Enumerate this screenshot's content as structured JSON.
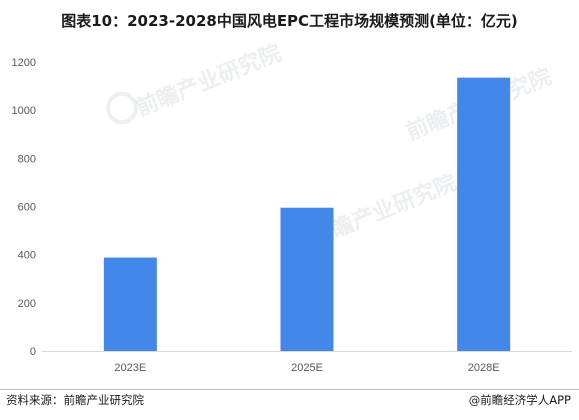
{
  "chart_data": {
    "type": "bar",
    "title": "图表10：2023-2028中国风电EPC工程市场规模预测(单位：亿元)",
    "categories": [
      "2023E",
      "2025E",
      "2028E"
    ],
    "values": [
      388,
      595,
      1135
    ],
    "xlabel": "",
    "ylabel": "",
    "ylim": [
      0,
      1200
    ],
    "yticks": [
      0,
      200,
      400,
      600,
      800,
      1000,
      1200
    ],
    "grid": false,
    "legend": "none",
    "bar_color": "#4387e8"
  },
  "footer": {
    "source": "资料来源：前瞻产业研究院",
    "brand": "@前瞻经济学人APP"
  },
  "watermark": "前瞻产业研究院"
}
